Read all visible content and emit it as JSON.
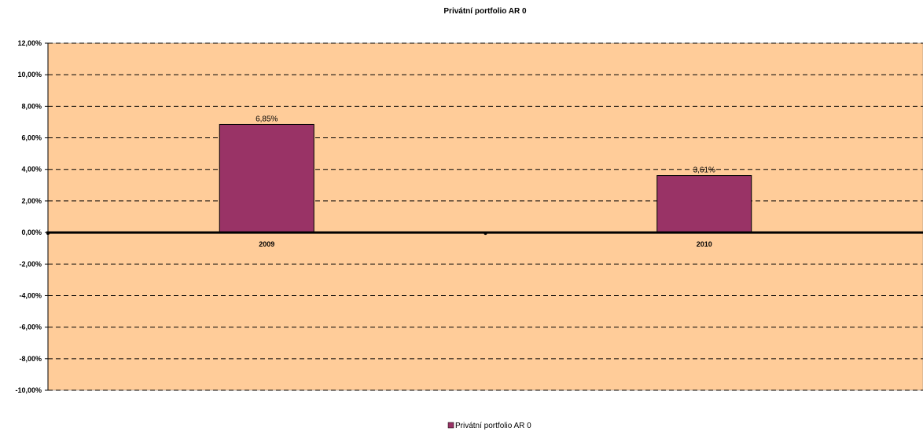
{
  "chart_data": {
    "type": "bar",
    "title": "Privátní portfolio AR 0",
    "categories": [
      "2009",
      "2010"
    ],
    "series": [
      {
        "name": "Privátní portfolio AR 0",
        "values": [
          6.85,
          3.61
        ],
        "data_labels": [
          "6,85%",
          "3,61%"
        ],
        "color": "#993366"
      }
    ],
    "ylim": [
      -10,
      12
    ],
    "yticks": [
      12,
      10,
      8,
      6,
      4,
      2,
      0,
      -2,
      -4,
      -6,
      -8,
      -10
    ],
    "ytick_labels": [
      "12,00%",
      "10,00%",
      "8,00%",
      "6,00%",
      "4,00%",
      "2,00%",
      "0,00%",
      "-2,00%",
      "-4,00%",
      "-6,00%",
      "-8,00%",
      "-10,00%"
    ],
    "grid": true,
    "grid_style": "dashed",
    "legend": "bottom",
    "colors": {
      "plot_background": "#ffcc99",
      "bar_fill": "#993366",
      "bar_stroke": "#000000",
      "axis": "#000000"
    }
  }
}
